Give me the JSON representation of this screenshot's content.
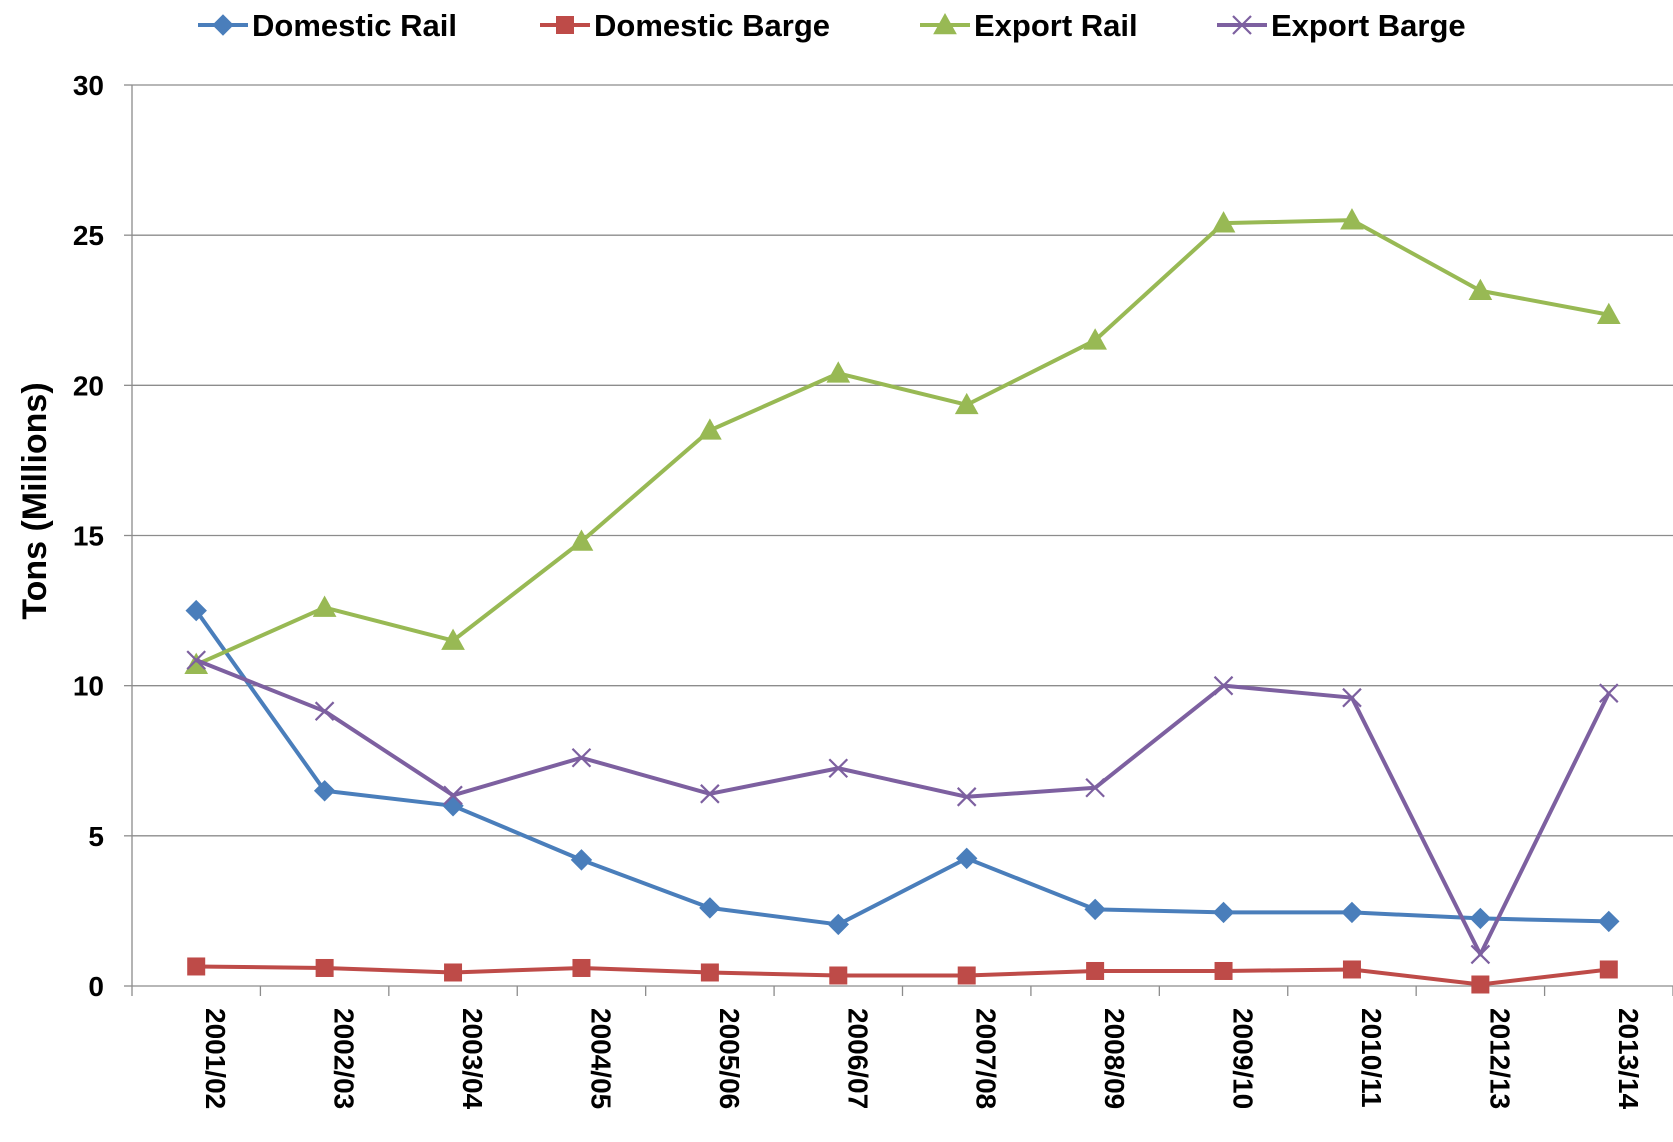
{
  "chart_data": {
    "type": "line",
    "title": "",
    "xlabel": "",
    "ylabel": "Tons (Millions)",
    "categories": [
      "2001/02",
      "2002/03",
      "2003/04",
      "2004/05",
      "2005/06",
      "2006/07",
      "2007/08",
      "2008/09",
      "2009/10",
      "2010/11",
      "2012/13",
      "2013/14"
    ],
    "ylim": [
      0,
      30
    ],
    "yticks": [
      0,
      5,
      10,
      15,
      20,
      25,
      30
    ],
    "grid": true,
    "legend_position": "top",
    "series": [
      {
        "name": "Domestic Rail",
        "color": "#4a7ebb",
        "marker": "diamond",
        "values": [
          12.5,
          6.5,
          6.0,
          4.2,
          2.6,
          2.05,
          4.25,
          2.55,
          2.45,
          2.45,
          2.25,
          2.15
        ]
      },
      {
        "name": "Domestic Barge",
        "color": "#be4b48",
        "marker": "square",
        "values": [
          0.65,
          0.6,
          0.45,
          0.6,
          0.45,
          0.35,
          0.35,
          0.5,
          0.5,
          0.55,
          0.05,
          0.55
        ]
      },
      {
        "name": "Export Rail",
        "color": "#98b954",
        "marker": "triangle",
        "values": [
          10.7,
          12.6,
          11.5,
          14.8,
          18.5,
          20.4,
          19.35,
          21.5,
          25.4,
          25.5,
          23.15,
          22.35
        ]
      },
      {
        "name": "Export Barge",
        "color": "#7d60a0",
        "marker": "x",
        "values": [
          10.85,
          9.15,
          6.35,
          7.6,
          6.4,
          7.25,
          6.3,
          6.6,
          10.0,
          9.6,
          1.05,
          9.75
        ]
      }
    ]
  }
}
